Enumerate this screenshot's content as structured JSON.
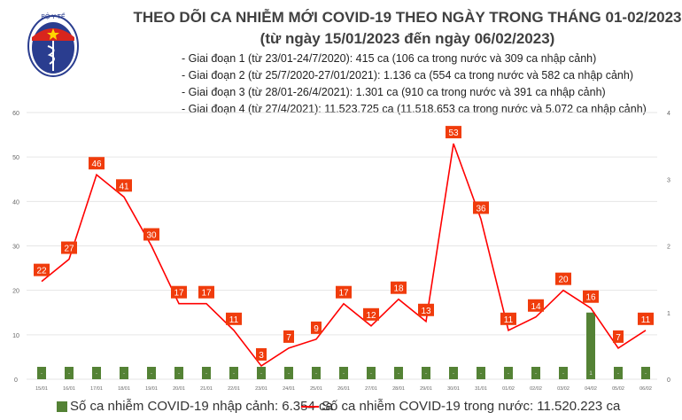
{
  "header": {
    "logo_text": "BỘ Y TẾ",
    "logo_subtext": "MINISTRY OF HEALTH",
    "title": "THEO DÕI CA NHIỄM MỚI COVID-19 THEO NGÀY TRONG THÁNG 01-02/2023",
    "subtitle": "(từ ngày 15/01/2023 đến ngày 06/02/2023)",
    "notes": [
      "- Giai đoạn 1 (từ 23/01-24/7/2020): 415 ca (106 ca trong nước và 309 ca nhập cảnh)",
      "- Giai đoạn 2 (từ 25/7/2020-27/01/2021): 1.136 ca (554 ca trong nước và 582 ca nhập cảnh)",
      "- Giai đoạn 3 (từ 28/01-26/4/2021): 1.301 ca (910 ca trong nước và 391 ca nhập cảnh)",
      "- Giai đoạn 4 (từ 27/4/2021): 11.523.725 ca (11.518.653 ca trong nước và 5.072 ca nhập cảnh)"
    ]
  },
  "chart_data": {
    "type": "bar+line",
    "categories": [
      "15/01",
      "16/01",
      "17/01",
      "18/01",
      "19/01",
      "20/01",
      "21/01",
      "22/01",
      "23/01",
      "24/01",
      "25/01",
      "26/01",
      "27/01",
      "28/01",
      "29/01",
      "30/01",
      "31/01",
      "01/02",
      "02/02",
      "03/02",
      "04/02",
      "05/02",
      "06/02"
    ],
    "series": [
      {
        "name": "Số ca nhiễm COVID-19 nhập cảnh: 6.354 ca",
        "type": "bar",
        "axis": "right",
        "color": "#548235",
        "values": [
          0,
          0,
          0,
          0,
          0,
          0,
          0,
          0,
          0,
          0,
          0,
          0,
          0,
          0,
          0,
          0,
          0,
          0,
          0,
          0,
          1,
          0,
          0
        ]
      },
      {
        "name": "Số ca nhiễm COVID-19 trong nước: 11.520.223 ca",
        "type": "line",
        "axis": "left",
        "color": "#ff0000",
        "values": [
          22,
          27,
          46,
          41,
          30,
          17,
          17,
          11,
          3,
          7,
          9,
          17,
          12,
          18,
          13,
          53,
          36,
          11,
          14,
          20,
          16,
          7,
          11
        ]
      }
    ],
    "y_left": {
      "range": [
        0,
        60
      ],
      "ticks": [
        "0",
        "10",
        "20",
        "30",
        "40",
        "50",
        "60"
      ]
    },
    "y_right": {
      "range": [
        0,
        4
      ],
      "ticks": [
        "0",
        "1",
        "2",
        "3",
        "4"
      ]
    },
    "zero_label": "-",
    "grid": true,
    "legend": "bottom",
    "label_color": "#f03c0c"
  }
}
